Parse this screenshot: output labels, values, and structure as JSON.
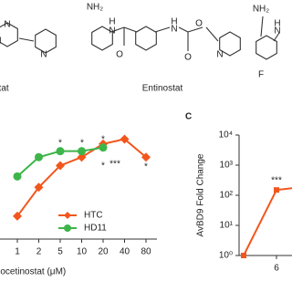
{
  "structures": [
    {
      "name": "ostat",
      "atoms": [
        "N",
        "N",
        "N"
      ]
    },
    {
      "name": "Entinostat",
      "atoms": [
        "NH₂",
        "H",
        "N",
        "O",
        "H",
        "N",
        "O",
        "O",
        "N"
      ]
    },
    {
      "name": null,
      "atoms": [
        "NH₂",
        "H",
        "N",
        "F"
      ]
    }
  ],
  "chart_data": [
    {
      "type": "line",
      "x_label": "Mocetinostat (μM)",
      "categories": [
        "1",
        "2",
        "5",
        "10",
        "20",
        "40",
        "80"
      ],
      "ylim": [
        0,
        100
      ],
      "series": [
        {
          "name": "HTC",
          "color": "#f2561d",
          "marker": "diamond",
          "values": [
            19,
            43,
            61,
            68,
            79,
            83,
            68
          ]
        },
        {
          "name": "HD11",
          "color": "#3db54a",
          "marker": "circle",
          "values": [
            52,
            68,
            73,
            73,
            76,
            null,
            null
          ]
        }
      ],
      "annotations": [
        "*",
        "*",
        "*",
        "*",
        "***",
        "*"
      ]
    },
    {
      "type": "line",
      "panel_label": "C",
      "y_label": "AvBD9 Fold Change",
      "log_y": true,
      "categories": [
        null,
        "6",
        null
      ],
      "ylim": [
        1,
        10000
      ],
      "yticks": [
        {
          "value": 1,
          "label": "10⁰"
        },
        {
          "value": 10,
          "label": "10¹"
        },
        {
          "value": 100,
          "label": "10²"
        },
        {
          "value": 1000,
          "label": "10³"
        },
        {
          "value": 10000,
          "label": "10⁴"
        }
      ],
      "series": [
        {
          "name": null,
          "color": "#f2561d",
          "marker": "square",
          "values": [
            1,
            150,
            200
          ]
        }
      ],
      "annotations": [
        "***"
      ]
    }
  ]
}
